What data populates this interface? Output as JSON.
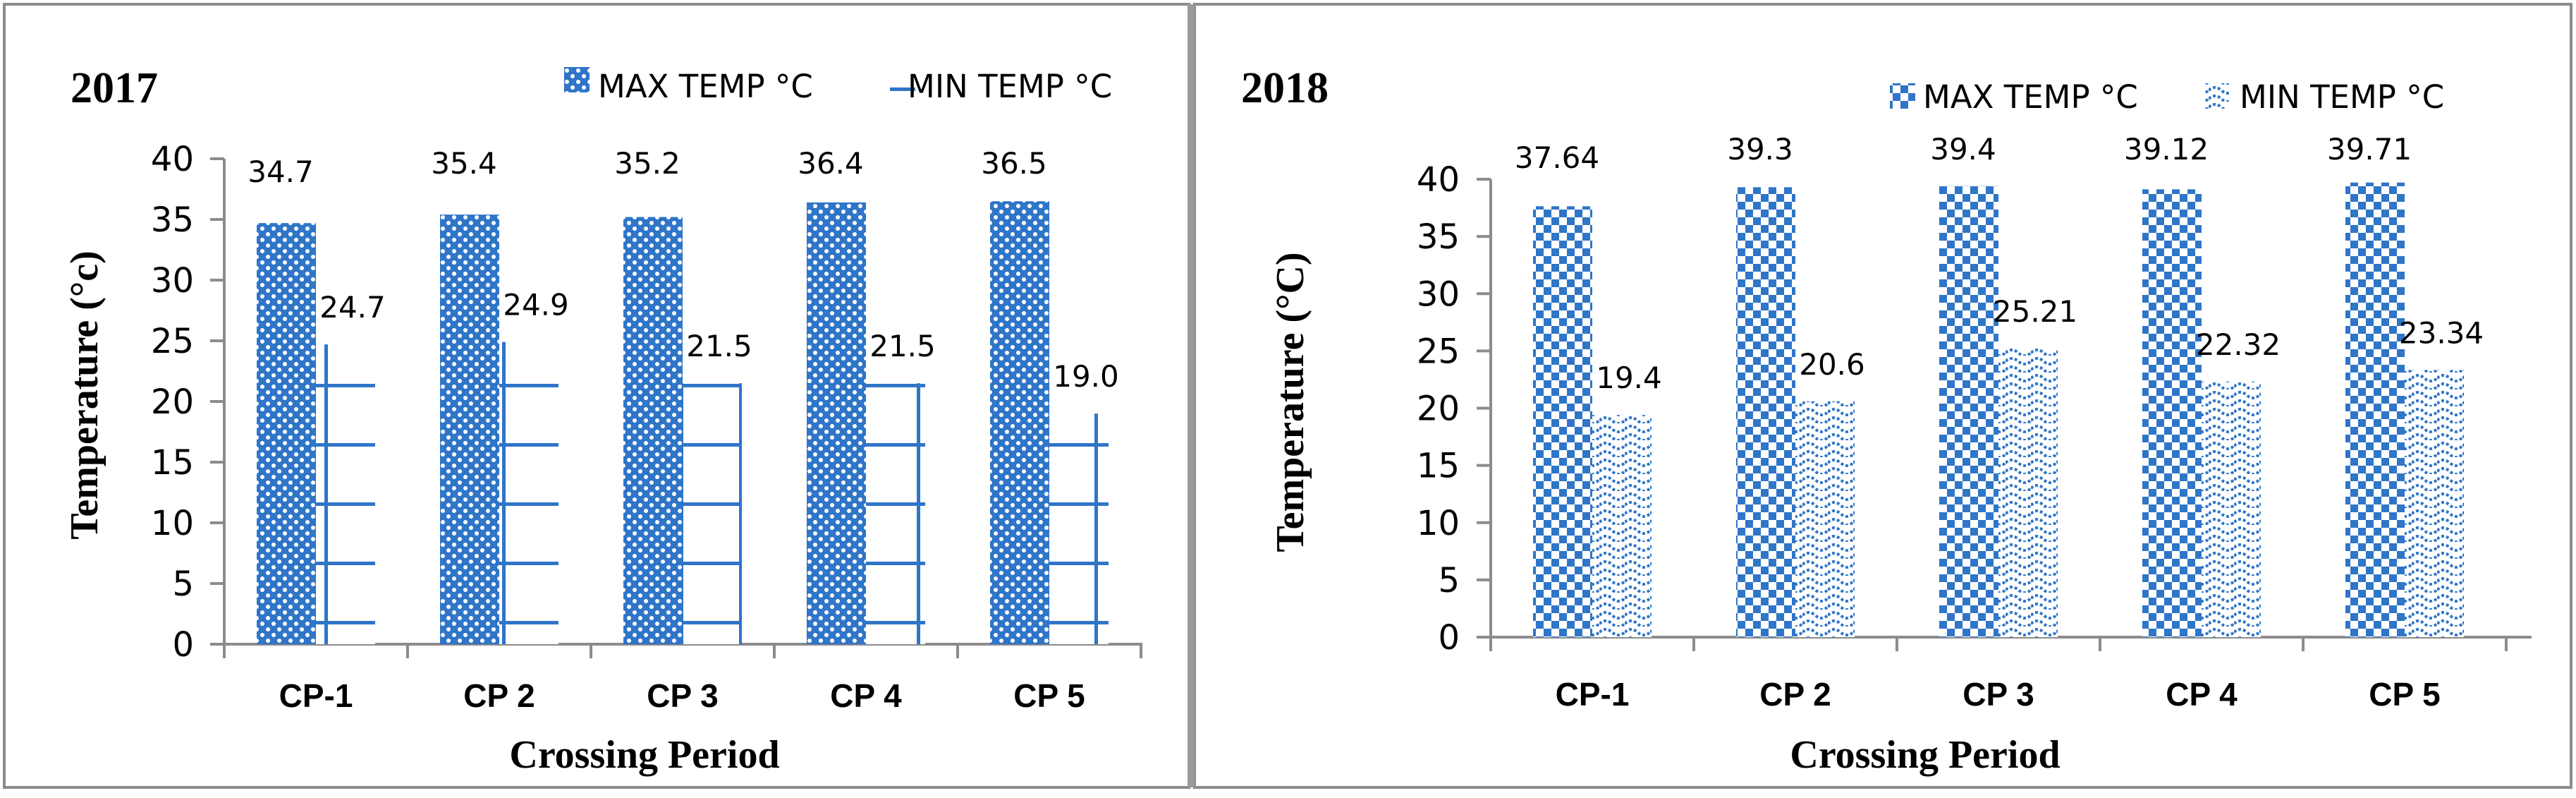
{
  "colors": {
    "bar": "#2f75c8",
    "bar_light": "#ffffff",
    "axis": "#8c8c8c",
    "frame": "#8c8c8c"
  },
  "chart_data": [
    {
      "type": "bar",
      "title": "2017",
      "xlabel": "Crossing Period",
      "ylabel": "Temperature (°c)",
      "categories": [
        "CP-1",
        "CP 2",
        "CP 3",
        "CP 4",
        "CP 5"
      ],
      "ylim": [
        0,
        40
      ],
      "yticks": [
        0,
        5,
        10,
        15,
        20,
        25,
        30,
        35,
        40
      ],
      "series": [
        {
          "name": "MAX TEMP °C",
          "pattern": "dots",
          "values": [
            34.7,
            35.4,
            35.2,
            36.4,
            36.5
          ],
          "labels": [
            "34.7",
            "35.4",
            "35.2",
            "36.4",
            "36.5"
          ]
        },
        {
          "name": "MIN TEMP °C",
          "pattern": "grid",
          "values": [
            24.7,
            24.9,
            21.5,
            21.5,
            19.0
          ],
          "labels": [
            "24.7",
            "24.9",
            "21.5",
            "21.5",
            "19.0"
          ]
        }
      ],
      "legend_position": "top-right"
    },
    {
      "type": "bar",
      "title": "2018",
      "xlabel": "Crossing Period",
      "ylabel": "Temperature (°C)",
      "categories": [
        "CP-1",
        "CP 2",
        "CP 3",
        "CP 4",
        "CP 5"
      ],
      "ylim": [
        0,
        40
      ],
      "yticks": [
        0,
        5,
        10,
        15,
        20,
        25,
        30,
        35,
        40
      ],
      "series": [
        {
          "name": "MAX TEMP °C",
          "pattern": "checker",
          "values": [
            37.64,
            39.3,
            39.4,
            39.12,
            39.71
          ],
          "labels": [
            "37.64",
            "39.3",
            "39.4",
            "39.12",
            "39.71"
          ]
        },
        {
          "name": "MIN TEMP °C",
          "pattern": "wave",
          "values": [
            19.4,
            20.6,
            25.21,
            22.32,
            23.34
          ],
          "labels": [
            "19.4",
            "20.6",
            "25.21",
            "22.32",
            "23.34"
          ]
        }
      ],
      "legend_position": "top-right"
    }
  ]
}
